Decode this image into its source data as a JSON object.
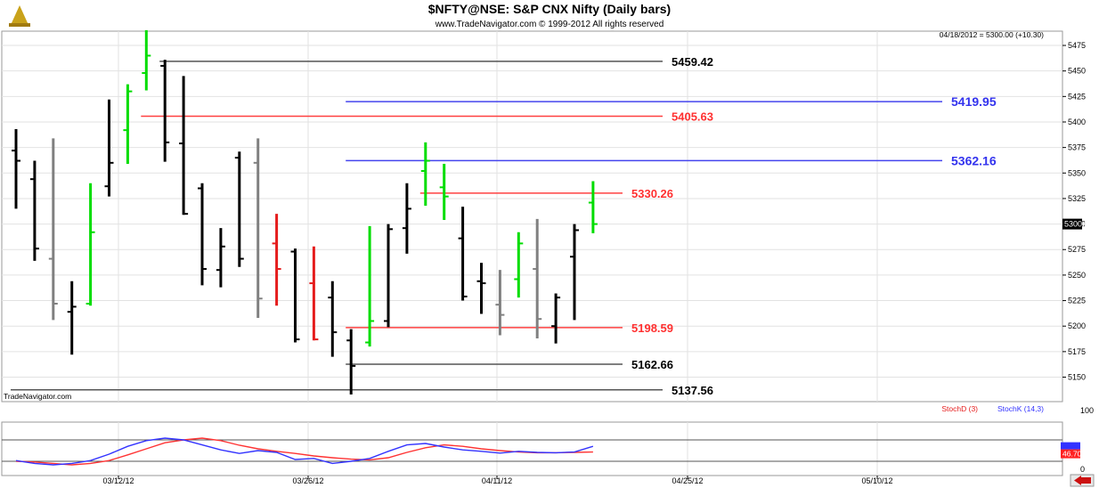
{
  "header": {
    "title": "$NFTY@NSE:  S&P CNX Nifty  (Daily bars)",
    "copyright": "www.TradeNavigator.com © 1999-2012 All rights reserved",
    "quote": "04/18/2012 = 5300.00 (+10.30)"
  },
  "watermark": "TradeNavigator.com",
  "colors": {
    "up": "#00dd00",
    "down": "#e51c1c",
    "neutral": "#000000",
    "unchanged": "#808080",
    "support_resistance_black": "#555555",
    "level_red": "#ff4040",
    "level_blue": "#4444ee",
    "stoch_d": "#ff3333",
    "stoch_k": "#3333ff"
  },
  "chart_data": [
    {
      "type": "ohlc",
      "y_ticks": [
        5150,
        5175,
        5200,
        5225,
        5250,
        5275,
        5300,
        5325,
        5350,
        5375,
        5400,
        5425,
        5450,
        5475
      ],
      "ylim": [
        5133,
        5482
      ],
      "x_ticks": [
        "03/12/12",
        "03/26/12",
        "04/11/12",
        "04/25/12",
        "05/10/12"
      ],
      "last_price_label": "5300.00",
      "bars": [
        {
          "h": 5393,
          "l": 5315,
          "o": 5372,
          "c": 5362,
          "color": "neutral"
        },
        {
          "h": 5362,
          "l": 5264,
          "o": 5344,
          "c": 5276,
          "color": "neutral"
        },
        {
          "h": 5384,
          "l": 5206,
          "o": 5266,
          "c": 5222,
          "color": "unchanged"
        },
        {
          "h": 5244,
          "l": 5172,
          "o": 5214,
          "c": 5219,
          "color": "neutral"
        },
        {
          "h": 5340,
          "l": 5220,
          "o": 5222,
          "c": 5292,
          "color": "up"
        },
        {
          "h": 5422,
          "l": 5327,
          "o": 5337,
          "c": 5360,
          "color": "neutral"
        },
        {
          "h": 5437,
          "l": 5359,
          "o": 5392,
          "c": 5430,
          "color": "up"
        },
        {
          "h": 5490,
          "l": 5431,
          "o": 5448,
          "c": 5465,
          "color": "up"
        },
        {
          "h": 5461,
          "l": 5361,
          "o": 5455,
          "c": 5380,
          "color": "neutral"
        },
        {
          "h": 5445,
          "l": 5309,
          "o": 5379,
          "c": 5310,
          "color": "neutral"
        },
        {
          "h": 5340,
          "l": 5240,
          "o": 5335,
          "c": 5256,
          "color": "neutral"
        },
        {
          "h": 5296,
          "l": 5238,
          "o": 5255,
          "c": 5278,
          "color": "neutral"
        },
        {
          "h": 5371,
          "l": 5258,
          "o": 5365,
          "c": 5266,
          "color": "neutral"
        },
        {
          "h": 5384,
          "l": 5208,
          "o": 5360,
          "c": 5227,
          "color": "unchanged"
        },
        {
          "h": 5310,
          "l": 5220,
          "o": 5281,
          "c": 5256,
          "color": "down"
        },
        {
          "h": 5276,
          "l": 5184,
          "o": 5273,
          "c": 5187,
          "color": "neutral"
        },
        {
          "h": 5278,
          "l": 5186,
          "o": 5242,
          "c": 5187,
          "color": "down"
        },
        {
          "h": 5244,
          "l": 5170,
          "o": 5228,
          "c": 5194,
          "color": "neutral"
        },
        {
          "h": 5197,
          "l": 5133,
          "o": 5186,
          "c": 5161,
          "color": "neutral"
        },
        {
          "h": 5298,
          "l": 5180,
          "o": 5184,
          "c": 5205,
          "color": "up"
        },
        {
          "h": 5300,
          "l": 5199,
          "o": 5205,
          "c": 5295,
          "color": "neutral"
        },
        {
          "h": 5340,
          "l": 5271,
          "o": 5296,
          "c": 5315,
          "color": "neutral"
        },
        {
          "h": 5380,
          "l": 5318,
          "o": 5352,
          "c": 5362,
          "color": "up"
        },
        {
          "h": 5359,
          "l": 5304,
          "o": 5336,
          "c": 5327,
          "color": "up"
        },
        {
          "h": 5317,
          "l": 5225,
          "o": 5286,
          "c": 5229,
          "color": "neutral"
        },
        {
          "h": 5262,
          "l": 5212,
          "o": 5244,
          "c": 5242,
          "color": "neutral"
        },
        {
          "h": 5255,
          "l": 5191,
          "o": 5221,
          "c": 5211,
          "color": "unchanged"
        },
        {
          "h": 5292,
          "l": 5228,
          "o": 5246,
          "c": 5281,
          "color": "up"
        },
        {
          "h": 5305,
          "l": 5188,
          "o": 5256,
          "c": 5207,
          "color": "unchanged"
        },
        {
          "h": 5232,
          "l": 5183,
          "o": 5200,
          "c": 5228,
          "color": "neutral"
        },
        {
          "h": 5300,
          "l": 5206,
          "o": 5268,
          "c": 5294,
          "color": "neutral"
        },
        {
          "h": 5342,
          "l": 5291,
          "o": 5321,
          "c": 5300,
          "color": "up"
        }
      ],
      "levels": [
        {
          "value": 5459.42,
          "label": "5459.42",
          "color": "black",
          "from_bar": 8
        },
        {
          "value": 5419.95,
          "label": "5419.95",
          "color": "blue",
          "from_bar": 18
        },
        {
          "value": 5405.63,
          "label": "5405.63",
          "color": "red",
          "from_bar": 7
        },
        {
          "value": 5362.16,
          "label": "5362.16",
          "color": "blue",
          "from_bar": 18
        },
        {
          "value": 5330.26,
          "label": "5330.26",
          "color": "red",
          "from_bar": 22
        },
        {
          "value": 5198.59,
          "label": "5198.59",
          "color": "red",
          "from_bar": 18
        },
        {
          "value": 5162.66,
          "label": "5162.66",
          "color": "black",
          "from_bar": 18
        },
        {
          "value": 5137.56,
          "label": "5137.56",
          "color": "black",
          "from_bar": 0
        }
      ]
    },
    {
      "type": "line",
      "y_ticks": [
        0,
        100
      ],
      "ylim": [
        0,
        100
      ],
      "legend": [
        "StochD (3)",
        "StochK (14,3)"
      ],
      "last_value_label": "46.70",
      "series": [
        {
          "name": "StochD (3)",
          "color": "stoch_d",
          "values": [
            20,
            18,
            14,
            10,
            14,
            22,
            38,
            55,
            72,
            80,
            85,
            78,
            65,
            55,
            48,
            42,
            35,
            30,
            26,
            24,
            30,
            45,
            58,
            66,
            62,
            55,
            50,
            46,
            44,
            44,
            45,
            46
          ]
        },
        {
          "name": "StochK (14,3)",
          "color": "stoch_k",
          "values": [
            22,
            14,
            10,
            14,
            22,
            40,
            62,
            78,
            85,
            80,
            66,
            52,
            42,
            50,
            45,
            25,
            28,
            14,
            20,
            28,
            48,
            66,
            70,
            60,
            52,
            48,
            43,
            48,
            45,
            44,
            46,
            62
          ]
        }
      ]
    }
  ]
}
